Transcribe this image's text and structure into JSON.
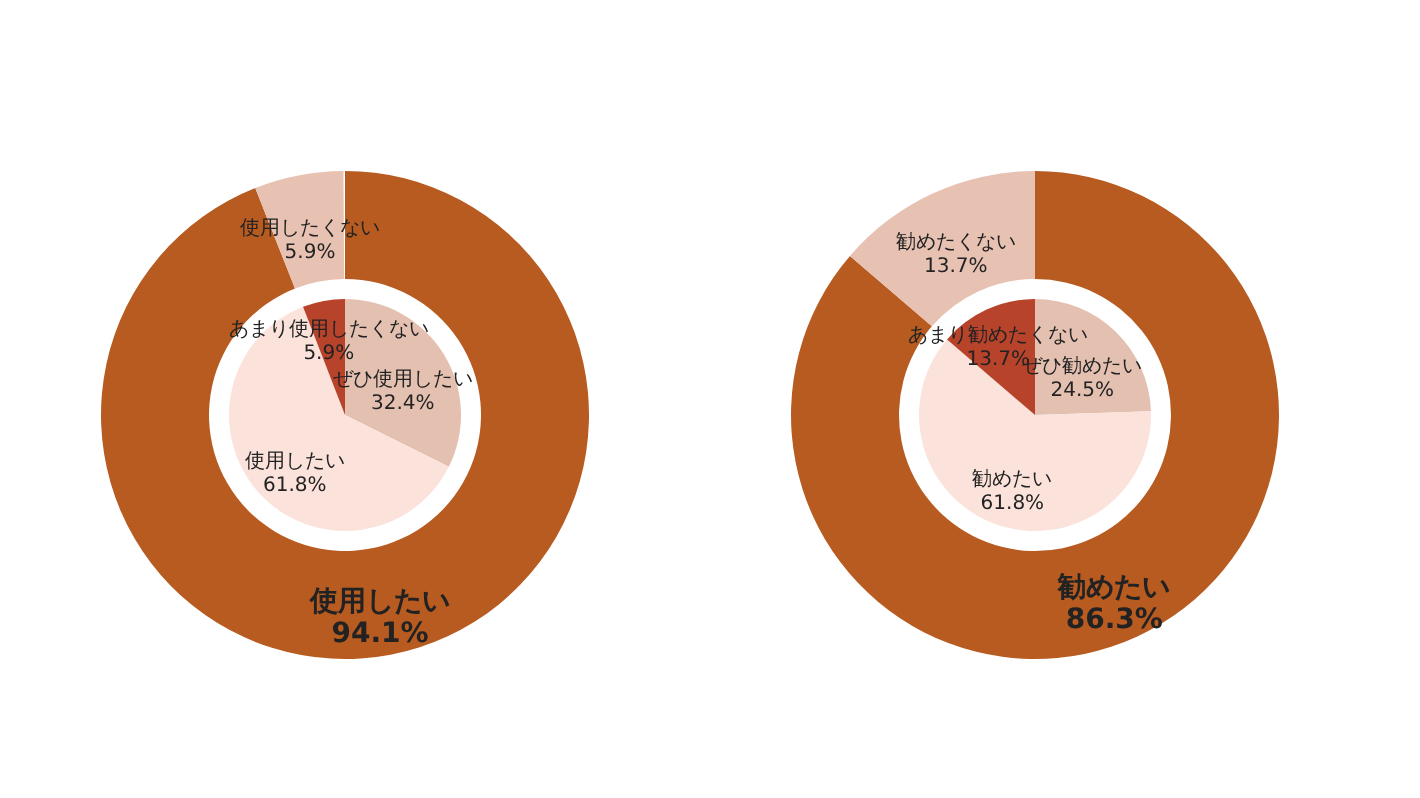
{
  "chart_data": [
    {
      "type": "donut",
      "series": [
        {
          "values": [
            94.1,
            5.9
          ],
          "colors": [
            "#b85b21",
            "#e7c1b1"
          ],
          "value_labels": [
            "使用したい 94.1%",
            "使用したくない 5.9%"
          ]
        },
        {
          "type": "pie",
          "values": [
            32.4,
            61.8,
            5.9
          ],
          "colors": [
            "#e4c0b1",
            "#fbe3dc",
            "#b8432b"
          ],
          "value_labels": [
            "ぜひ使用したい 32.4%",
            "使用したい 61.8%",
            "あまり使用したくない 5.9%"
          ]
        }
      ]
    },
    {
      "type": "donut",
      "series": [
        {
          "values": [
            86.3,
            13.7
          ],
          "colors": [
            "#b85b21",
            "#e7c1b1"
          ],
          "value_labels": [
            "勧めたい 86.3%",
            "勧めたくない 13.7%"
          ]
        },
        {
          "type": "pie",
          "values": [
            24.5,
            61.8,
            13.7
          ],
          "colors": [
            "#e4c0b1",
            "#fbe3dc",
            "#b8432b"
          ],
          "value_labels": [
            "ぜひ勧めたい 24.5%",
            "勧めたい 61.8%",
            "あまり勧めたくない 13.7%"
          ]
        }
      ]
    }
  ]
}
